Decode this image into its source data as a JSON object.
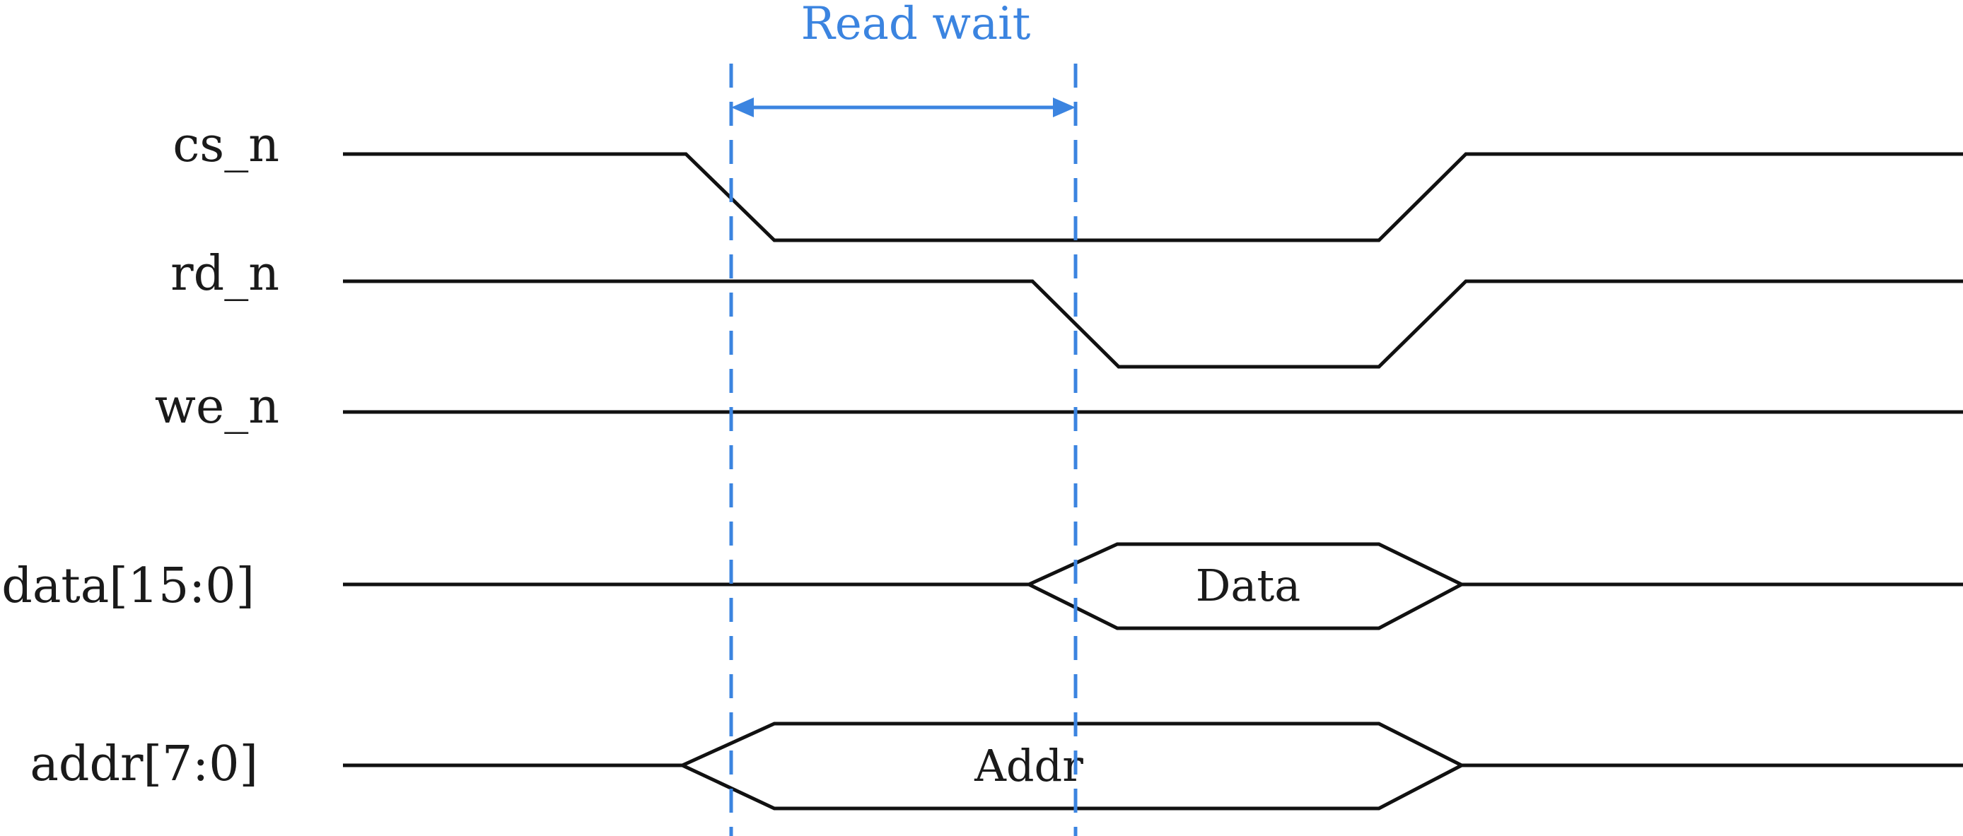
{
  "diagram": {
    "annotation": {
      "label": "Read wait",
      "color": "#3b84e0"
    },
    "signals": [
      {
        "id": "cs_n",
        "label": "cs_n"
      },
      {
        "id": "rd_n",
        "label": "rd_n"
      },
      {
        "id": "we_n",
        "label": "we_n"
      },
      {
        "id": "data",
        "label": "data[15:0]",
        "bus_value": "Data"
      },
      {
        "id": "addr",
        "label": "addr[7:0]",
        "bus_value": "Addr"
      }
    ],
    "line_color": "#111111"
  }
}
